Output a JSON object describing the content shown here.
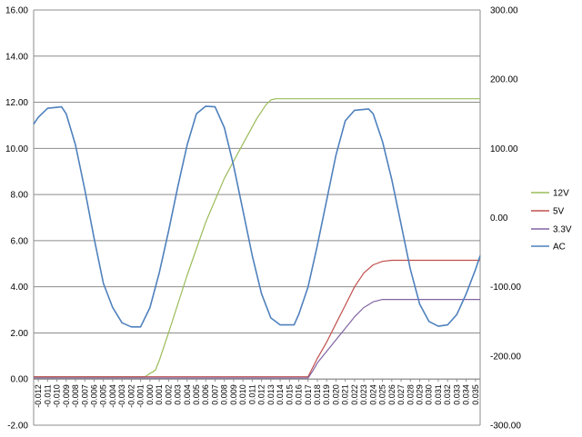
{
  "chart_data": {
    "type": "line",
    "title": "",
    "xlabel": "",
    "ylabel": "",
    "grid": true,
    "legend_position": "right",
    "x_categories": [
      "-0.012",
      "-0.011",
      "-0.010",
      "-0.009",
      "-0.008",
      "-0.007",
      "-0.006",
      "-0.005",
      "-0.004",
      "-0.003",
      "-0.002",
      "-0.001",
      "0.000",
      "0.001",
      "0.002",
      "0.003",
      "0.004",
      "0.005",
      "0.006",
      "0.007",
      "0.008",
      "0.009",
      "0.010",
      "0.011",
      "0.012",
      "0.013",
      "0.014",
      "0.015",
      "0.016",
      "0.017",
      "0.018",
      "0.019",
      "0.020",
      "0.021",
      "0.022",
      "0.023",
      "0.024",
      "0.025",
      "0.026",
      "0.027",
      "0.028",
      "0.029",
      "0.030",
      "0.031",
      "0.032",
      "0.033",
      "0.034",
      "0.035"
    ],
    "xlim": [
      -0.0125,
      0.0355
    ],
    "y_left": {
      "min": -2,
      "max": 16,
      "ticks": [
        -2,
        0,
        2,
        4,
        6,
        8,
        10,
        12,
        14,
        16
      ],
      "tick_labels": [
        "-2.00",
        "0.00",
        "2.00",
        "4.00",
        "6.00",
        "8.00",
        "10.00",
        "12.00",
        "14.00",
        "16.00"
      ]
    },
    "y_right": {
      "min": -300,
      "max": 300,
      "ticks": [
        -300,
        -200,
        -100,
        0,
        100,
        200,
        300
      ],
      "tick_labels": [
        "-300.00",
        "-200.00",
        "-100.00",
        "0.00",
        "100.00",
        "200.00",
        "300.00"
      ]
    },
    "series": [
      {
        "name": "12V",
        "color": "#9BBB59",
        "axis": "left",
        "points": [
          [
            -0.0125,
            0.1
          ],
          [
            -0.0005,
            0.1
          ],
          [
            0.0,
            0.25
          ],
          [
            0.0003,
            0.3
          ],
          [
            0.0006,
            0.4
          ],
          [
            0.001,
            0.8
          ],
          [
            0.002,
            2.0
          ],
          [
            0.004,
            4.5
          ],
          [
            0.006,
            6.8
          ],
          [
            0.008,
            8.7
          ],
          [
            0.01,
            10.2
          ],
          [
            0.0115,
            11.3
          ],
          [
            0.0125,
            11.9
          ],
          [
            0.013,
            12.1
          ],
          [
            0.0135,
            12.15
          ],
          [
            0.0355,
            12.15
          ]
        ]
      },
      {
        "name": "5V",
        "color": "#C0504D",
        "axis": "left",
        "points": [
          [
            -0.0125,
            0.1
          ],
          [
            0.017,
            0.1
          ],
          [
            0.0175,
            0.5
          ],
          [
            0.018,
            0.9
          ],
          [
            0.019,
            1.6
          ],
          [
            0.02,
            2.4
          ],
          [
            0.021,
            3.2
          ],
          [
            0.022,
            4.0
          ],
          [
            0.023,
            4.6
          ],
          [
            0.024,
            4.95
          ],
          [
            0.025,
            5.1
          ],
          [
            0.026,
            5.15
          ],
          [
            0.0355,
            5.15
          ]
        ]
      },
      {
        "name": "3.3V",
        "color": "#8064A2",
        "axis": "left",
        "points": [
          [
            -0.0125,
            0.05
          ],
          [
            0.017,
            0.05
          ],
          [
            0.0175,
            0.35
          ],
          [
            0.018,
            0.7
          ],
          [
            0.019,
            1.2
          ],
          [
            0.02,
            1.7
          ],
          [
            0.021,
            2.2
          ],
          [
            0.022,
            2.7
          ],
          [
            0.023,
            3.1
          ],
          [
            0.024,
            3.35
          ],
          [
            0.025,
            3.45
          ],
          [
            0.0355,
            3.45
          ]
        ]
      },
      {
        "name": "AC",
        "color": "#4F81BD",
        "axis": "right",
        "points": [
          [
            -0.0125,
            135
          ],
          [
            -0.012,
            145
          ],
          [
            -0.011,
            158
          ],
          [
            -0.0095,
            160
          ],
          [
            -0.009,
            150
          ],
          [
            -0.008,
            105
          ],
          [
            -0.007,
            40
          ],
          [
            -0.006,
            -30
          ],
          [
            -0.005,
            -95
          ],
          [
            -0.004,
            -130
          ],
          [
            -0.003,
            -152
          ],
          [
            -0.002,
            -158
          ],
          [
            -0.001,
            -158
          ],
          [
            0.0,
            -130
          ],
          [
            0.001,
            -80
          ],
          [
            0.002,
            -20
          ],
          [
            0.003,
            45
          ],
          [
            0.004,
            105
          ],
          [
            0.005,
            150
          ],
          [
            0.006,
            161
          ],
          [
            0.007,
            160
          ],
          [
            0.008,
            130
          ],
          [
            0.009,
            75
          ],
          [
            0.01,
            10
          ],
          [
            0.011,
            -55
          ],
          [
            0.012,
            -110
          ],
          [
            0.013,
            -145
          ],
          [
            0.014,
            -155
          ],
          [
            0.0155,
            -155
          ],
          [
            0.016,
            -140
          ],
          [
            0.017,
            -100
          ],
          [
            0.018,
            -40
          ],
          [
            0.019,
            25
          ],
          [
            0.02,
            90
          ],
          [
            0.021,
            140
          ],
          [
            0.022,
            155
          ],
          [
            0.0235,
            157
          ],
          [
            0.024,
            150
          ],
          [
            0.025,
            110
          ],
          [
            0.026,
            55
          ],
          [
            0.027,
            -10
          ],
          [
            0.028,
            -75
          ],
          [
            0.029,
            -125
          ],
          [
            0.03,
            -150
          ],
          [
            0.031,
            -157
          ],
          [
            0.032,
            -155
          ],
          [
            0.033,
            -140
          ],
          [
            0.034,
            -110
          ],
          [
            0.035,
            -75
          ],
          [
            0.0355,
            -55
          ]
        ]
      }
    ]
  }
}
